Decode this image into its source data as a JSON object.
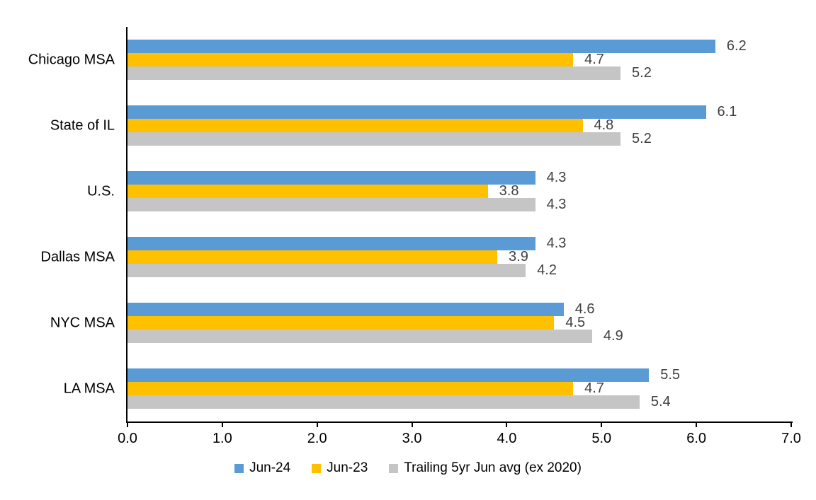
{
  "page": {
    "background": "#FFFFFF"
  },
  "chart_data": {
    "type": "bar",
    "orientation": "horizontal",
    "title": "",
    "categories": [
      "Chicago MSA",
      "State of IL",
      "U.S.",
      "Dallas MSA",
      "NYC MSA",
      "LA MSA"
    ],
    "series": [
      {
        "name": "Jun-24",
        "color": "#5B9BD5",
        "values": [
          6.2,
          6.1,
          4.3,
          4.3,
          4.6,
          5.5
        ],
        "labels": [
          "6.2",
          "6.1",
          "4.3",
          "4.3",
          "4.6",
          "5.5"
        ]
      },
      {
        "name": "Jun-23",
        "color": "#FFC000",
        "values": [
          4.7,
          4.8,
          3.8,
          3.9,
          4.5,
          4.7
        ],
        "labels": [
          "4.7",
          "4.8",
          "3.8",
          "3.9",
          "4.5",
          "4.7"
        ]
      },
      {
        "name": "Trailing 5yr Jun avg (ex 2020)",
        "color": "#C5C5C5",
        "values": [
          5.2,
          5.2,
          4.3,
          4.2,
          4.9,
          5.4
        ],
        "labels": [
          "5.2",
          "5.2",
          "4.3",
          "4.2",
          "4.9",
          "5.4"
        ]
      }
    ],
    "xlim": [
      0,
      7
    ],
    "xticks": [
      "0.0",
      "1.0",
      "2.0",
      "3.0",
      "4.0",
      "5.0",
      "6.0",
      "7.0"
    ],
    "grid": false,
    "legend_position": "bottom",
    "value_labels": true,
    "value_label_color": "#404040",
    "axis_color": "#000000"
  }
}
